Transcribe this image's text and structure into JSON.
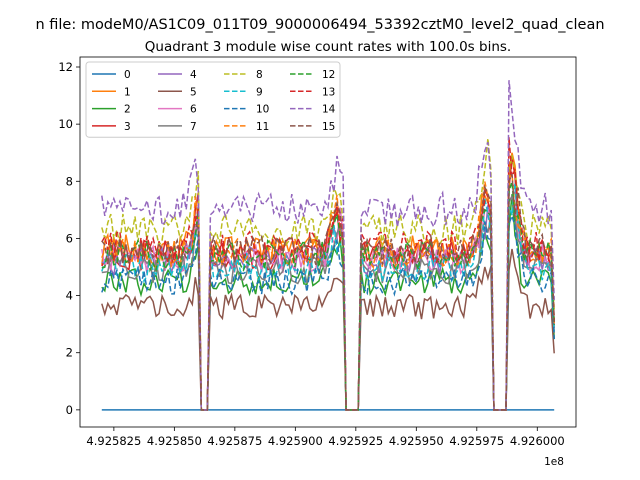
{
  "chart_data": {
    "type": "line",
    "suptitle": "n file: modeM0/AS1C09_011T09_9000006494_53392cztM0_level2_quad_clean",
    "title": "Quadrant 3 module wise count rates with 100.0s bins.",
    "xlabel": "",
    "ylabel": "",
    "x_offset_label": "1e8",
    "xlim": [
      4.925811,
      4.926016
    ],
    "ylim": [
      -0.6,
      12.35
    ],
    "x_ticks": [
      4.925825,
      4.92585,
      4.925875,
      4.9259,
      4.925925,
      4.92595,
      4.925975,
      4.926
    ],
    "x_tick_labels": [
      "4.925825",
      "4.925850",
      "4.925875",
      "4.925900",
      "4.925925",
      "4.925950",
      "4.925975",
      "4.926000"
    ],
    "y_ticks": [
      0,
      2,
      4,
      6,
      8,
      10,
      12
    ],
    "y_tick_labels": [
      "0",
      "2",
      "4",
      "6",
      "8",
      "10",
      "12"
    ],
    "grid": false,
    "legend_position": "top-left",
    "legend_columns": 4,
    "x_range": [
      4.92582,
      4.926007
    ],
    "gaps": [
      [
        4.925861,
        4.925864
      ],
      [
        4.92592,
        4.925927
      ],
      [
        4.925981,
        4.925988
      ]
    ],
    "spikes": [
      [
        4.92586,
        1.25
      ],
      [
        4.925917,
        1.25
      ],
      [
        4.925979,
        1.35
      ],
      [
        4.925989,
        1.5
      ]
    ],
    "series": [
      {
        "name": "0",
        "color": "#1f77b4",
        "dash": false,
        "level": 0.0
      },
      {
        "name": "1",
        "color": "#ff7f0e",
        "dash": false,
        "level": 5.6
      },
      {
        "name": "2",
        "color": "#2ca02c",
        "dash": false,
        "level": 4.5
      },
      {
        "name": "3",
        "color": "#d62728",
        "dash": false,
        "level": 5.4
      },
      {
        "name": "4",
        "color": "#9467bd",
        "dash": false,
        "level": 5.2
      },
      {
        "name": "5",
        "color": "#8c564b",
        "dash": false,
        "level": 3.6
      },
      {
        "name": "6",
        "color": "#e377c2",
        "dash": false,
        "level": 5.3
      },
      {
        "name": "7",
        "color": "#7f7f7f",
        "dash": false,
        "level": 4.9
      },
      {
        "name": "8",
        "color": "#bcbd22",
        "dash": true,
        "level": 6.3
      },
      {
        "name": "9",
        "color": "#17becf",
        "dash": true,
        "level": 5.0
      },
      {
        "name": "10",
        "color": "#1f77b4",
        "dash": true,
        "level": 4.5
      },
      {
        "name": "11",
        "color": "#ff7f0e",
        "dash": true,
        "level": 5.5
      },
      {
        "name": "12",
        "color": "#2ca02c",
        "dash": true,
        "level": 5.4
      },
      {
        "name": "13",
        "color": "#d62728",
        "dash": true,
        "level": 5.7
      },
      {
        "name": "14",
        "color": "#9467bd",
        "dash": true,
        "level": 7.0
      },
      {
        "name": "15",
        "color": "#8c564b",
        "dash": true,
        "level": 5.6
      }
    ]
  }
}
